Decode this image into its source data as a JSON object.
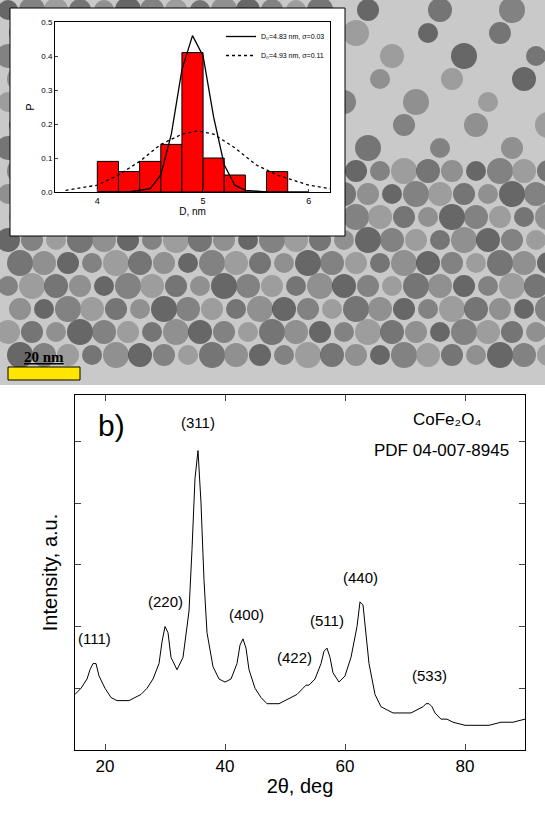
{
  "image": {
    "scale_bar": "20 nm"
  },
  "chart_data": [
    {
      "type": "histogram",
      "bins": [
        4.0,
        4.2,
        4.4,
        4.6,
        4.8,
        5.0,
        5.2,
        5.4,
        5.6,
        5.8
      ],
      "values": [
        0.09,
        0.06,
        0.09,
        0.14,
        0.41,
        0.1,
        0.05,
        0,
        0.06
      ],
      "color": "#ff0000",
      "xlabel": "D, nm",
      "ylabel": "P",
      "xlim": [
        3.6,
        6.2
      ],
      "xticks": [
        4,
        5,
        6
      ],
      "ylim": [
        0,
        0.5
      ],
      "yticks": [
        {
          "value": 0,
          "label": "0.0"
        },
        {
          "value": 0.1,
          "label": "0.1"
        },
        {
          "value": 0.2,
          "label": "0.2"
        },
        {
          "value": 0.3,
          "label": "0.3"
        },
        {
          "value": 0.4,
          "label": "0.4"
        },
        {
          "value": 0.5,
          "label": "0.5"
        }
      ],
      "legend": "upper right",
      "series": [
        {
          "name": "D₀=4.83 nm, σ=0.03",
          "type": "line",
          "line_style": "solid",
          "color": "#000000",
          "x": [
            4.0,
            4.3,
            4.5,
            4.6,
            4.7,
            4.8,
            4.9,
            5.0,
            5.1,
            5.2,
            5.3,
            5.4,
            5.6,
            6.0
          ],
          "values": [
            0,
            0,
            0.01,
            0.05,
            0.17,
            0.36,
            0.46,
            0.4,
            0.22,
            0.08,
            0.02,
            0.005,
            0,
            0
          ]
        },
        {
          "name": "D₀=4.93 nm, σ=0.11",
          "type": "line",
          "line_style": "dotted",
          "color": "#000000",
          "x": [
            3.7,
            4.0,
            4.2,
            4.4,
            4.6,
            4.8,
            4.95,
            5.1,
            5.3,
            5.5,
            5.7,
            6.0,
            6.2
          ],
          "values": [
            0.005,
            0.02,
            0.05,
            0.09,
            0.14,
            0.17,
            0.18,
            0.17,
            0.13,
            0.08,
            0.05,
            0.02,
            0.01
          ]
        }
      ]
    },
    {
      "type": "line",
      "x": [
        15,
        16,
        17,
        17.5,
        18,
        18.5,
        19,
        20,
        21,
        22,
        23,
        24,
        25,
        26,
        27,
        28,
        29,
        29.5,
        30,
        30.5,
        31,
        32,
        33,
        34,
        34.5,
        35,
        35.5,
        36,
        36.5,
        37,
        38,
        39,
        40,
        41,
        42,
        42.5,
        43,
        43.5,
        44,
        45,
        46,
        47,
        48,
        49,
        50,
        51,
        52,
        53,
        53.5,
        54,
        55,
        56,
        56.5,
        57,
        57.5,
        58,
        59,
        60,
        61,
        62,
        62.5,
        63,
        63.5,
        64,
        65,
        66,
        67,
        68,
        69,
        70,
        71,
        72,
        73,
        73.5,
        74,
        74.5,
        75,
        76,
        77,
        78,
        80,
        82,
        84,
        86,
        88,
        90
      ],
      "values": [
        18,
        20,
        23,
        26,
        28,
        28,
        24,
        20,
        17,
        16,
        16,
        16,
        17,
        18,
        20,
        23,
        28,
        35,
        40,
        38,
        30,
        26,
        30,
        45,
        65,
        88,
        97,
        80,
        55,
        38,
        27,
        23,
        22,
        23,
        28,
        34,
        36,
        33,
        26,
        20,
        17,
        15,
        15,
        15,
        16,
        17,
        18,
        20,
        21,
        21,
        23,
        28,
        32,
        33,
        30,
        25,
        22,
        24,
        30,
        40,
        48,
        47,
        38,
        28,
        18,
        14,
        13,
        12,
        12,
        12,
        12,
        13,
        14,
        15,
        15,
        14,
        12,
        10,
        10,
        9,
        8,
        8,
        8,
        9,
        9,
        10
      ],
      "color": "#000000",
      "xlabel": "2θ, deg",
      "ylabel": "Intensity, a.u.",
      "xlim": [
        15,
        90
      ],
      "xticks": [
        20,
        40,
        60,
        80
      ],
      "ylim": [
        0,
        115
      ],
      "yticks": [
        0,
        20,
        40,
        60,
        80,
        100
      ],
      "tick_labels": "x",
      "annotations": [
        {
          "text": "b)",
          "x": 21,
          "y": 105
        },
        {
          "text": "CoFe₂O₄",
          "x": 77,
          "y": 107
        },
        {
          "text": "PDF 04-007-8945",
          "x": 76,
          "y": 97
        },
        {
          "text": "(111)",
          "x": 18.3,
          "y": 36
        },
        {
          "text": "(220)",
          "x": 30.1,
          "y": 48
        },
        {
          "text": "(311)",
          "x": 35.5,
          "y": 106
        },
        {
          "text": "(400)",
          "x": 43.5,
          "y": 44
        },
        {
          "text": "(422)",
          "x": 51.5,
          "y": 30
        },
        {
          "text": "(511)",
          "x": 57,
          "y": 42
        },
        {
          "text": "(440)",
          "x": 62.6,
          "y": 56
        },
        {
          "text": "(533)",
          "x": 74,
          "y": 24
        }
      ]
    }
  ]
}
